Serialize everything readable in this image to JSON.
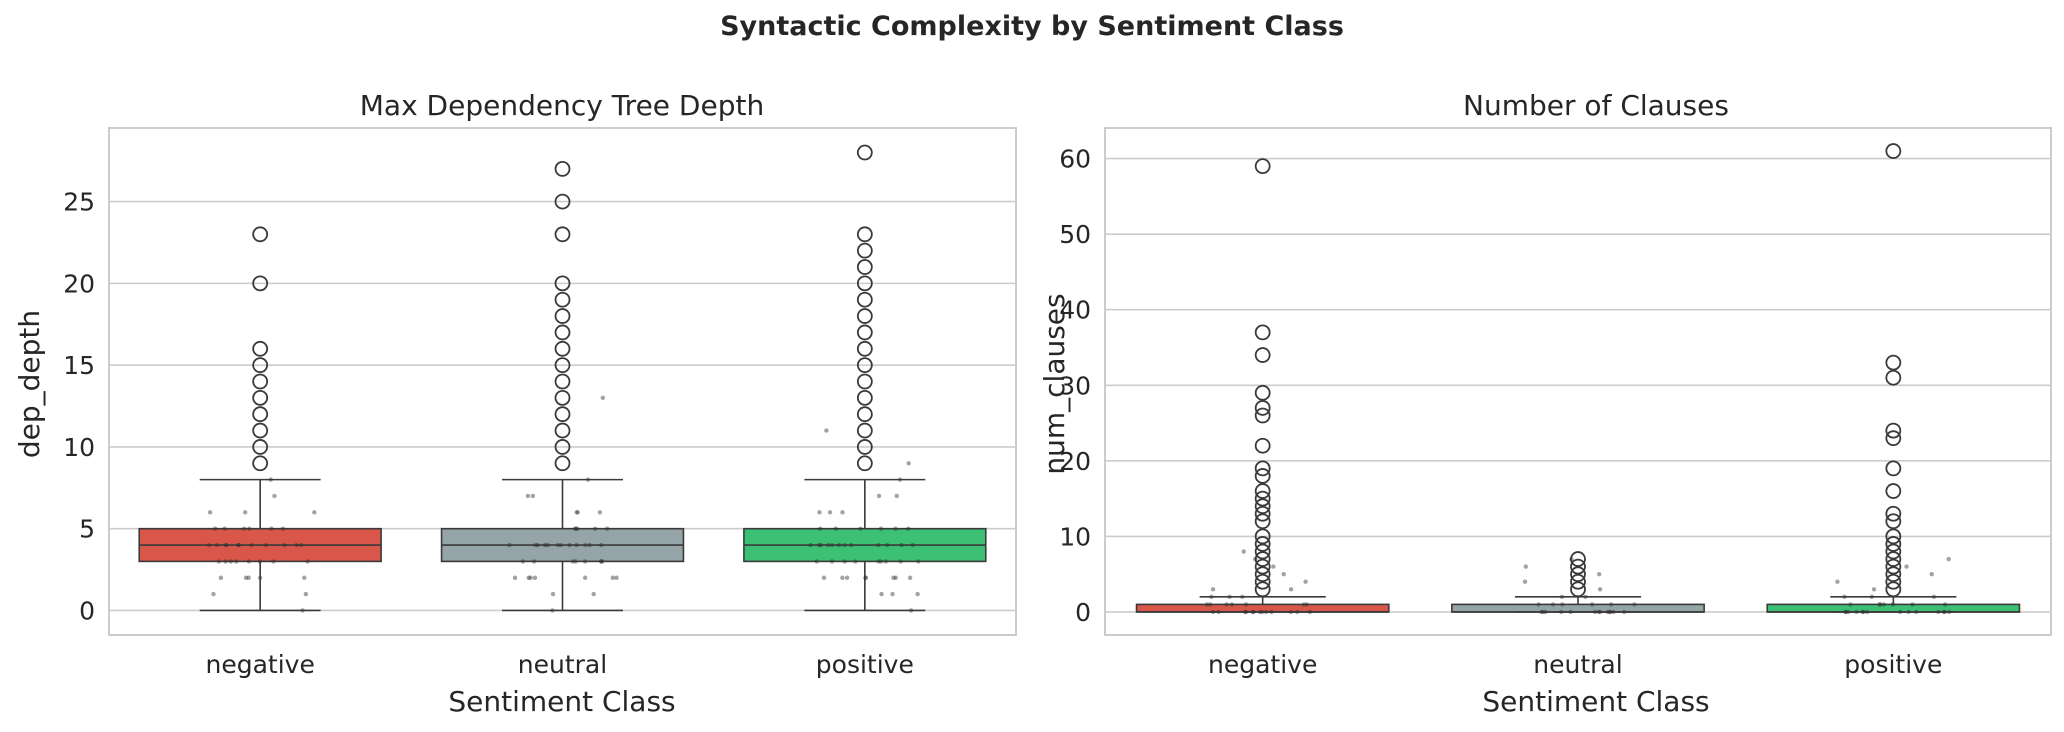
{
  "figure": {
    "suptitle": "Syntactic Complexity by Sentiment Class"
  },
  "colors": {
    "negative": "#d9574a",
    "neutral": "#95a4a6",
    "positive": "#3cc174",
    "box_edge": "#3a3a3a",
    "grid": "#cccccc",
    "frame": "#cccccc"
  },
  "chart_data": [
    {
      "type": "box",
      "title": "Max Dependency Tree Depth",
      "xlabel": "Sentiment Class",
      "ylabel": "dep_depth",
      "categories": [
        "negative",
        "neutral",
        "positive"
      ],
      "ylim": [
        -1.5,
        29.5
      ],
      "yticks": [
        0,
        5,
        10,
        15,
        20,
        25
      ],
      "grid": true,
      "boxes": [
        {
          "category": "negative",
          "whisker_low": 0,
          "q1": 3,
          "median": 4,
          "q3": 5,
          "whisker_high": 8,
          "outliers": [
            9,
            10,
            11,
            12,
            13,
            14,
            15,
            16,
            20,
            23
          ]
        },
        {
          "category": "neutral",
          "whisker_low": 0,
          "q1": 3,
          "median": 4,
          "q3": 5,
          "whisker_high": 8,
          "outliers": [
            9,
            10,
            11,
            12,
            13,
            14,
            15,
            16,
            17,
            18,
            19,
            20,
            23,
            25,
            27
          ]
        },
        {
          "category": "positive",
          "whisker_low": 0,
          "q1": 3,
          "median": 4,
          "q3": 5,
          "whisker_high": 8,
          "outliers": [
            9,
            10,
            11,
            12,
            13,
            14,
            15,
            16,
            17,
            18,
            19,
            20,
            21,
            22,
            23,
            28
          ]
        }
      ],
      "strip_points": [
        {
          "category": "negative",
          "values": [
            0,
            1,
            1,
            2,
            2,
            2,
            2,
            2,
            3,
            3,
            3,
            3,
            3,
            3,
            3,
            3,
            4,
            4,
            4,
            4,
            4,
            4,
            4,
            4,
            4,
            4,
            4,
            5,
            5,
            5,
            5,
            5,
            5,
            6,
            6,
            6,
            7,
            8
          ]
        },
        {
          "category": "neutral",
          "values": [
            0,
            1,
            1,
            2,
            2,
            2,
            2,
            2,
            2,
            2,
            3,
            3,
            3,
            3,
            3,
            3,
            3,
            3,
            4,
            4,
            4,
            4,
            4,
            4,
            4,
            4,
            4,
            4,
            4,
            4,
            5,
            5,
            5,
            5,
            5,
            6,
            6,
            6,
            7,
            7,
            8,
            13
          ]
        },
        {
          "category": "positive",
          "values": [
            0,
            1,
            1,
            1,
            2,
            2,
            2,
            2,
            2,
            2,
            2,
            2,
            3,
            3,
            3,
            3,
            3,
            3,
            3,
            3,
            3,
            4,
            4,
            4,
            4,
            4,
            4,
            4,
            4,
            4,
            4,
            4,
            4,
            5,
            5,
            5,
            5,
            5,
            5,
            6,
            6,
            6,
            7,
            7,
            8,
            9,
            11
          ]
        }
      ]
    },
    {
      "type": "box",
      "title": "Number of Clauses",
      "xlabel": "Sentiment Class",
      "ylabel": "num_clauses",
      "categories": [
        "negative",
        "neutral",
        "positive"
      ],
      "ylim": [
        -3.05,
        64.05
      ],
      "yticks": [
        0,
        10,
        20,
        30,
        40,
        50,
        60
      ],
      "grid": true,
      "boxes": [
        {
          "category": "negative",
          "whisker_low": 0,
          "q1": 0,
          "median": 0,
          "q3": 1,
          "whisker_high": 2,
          "outliers": [
            3,
            4,
            5,
            6,
            7,
            8,
            9,
            10,
            12,
            13,
            14,
            15,
            16,
            18,
            19,
            22,
            26,
            27,
            29,
            34,
            37,
            59
          ]
        },
        {
          "category": "neutral",
          "whisker_low": 0,
          "q1": 0,
          "median": 0,
          "q3": 1,
          "whisker_high": 2,
          "outliers": [
            3,
            4,
            5,
            6,
            7
          ]
        },
        {
          "category": "positive",
          "whisker_low": 0,
          "q1": 0,
          "median": 0,
          "q3": 1,
          "whisker_high": 2,
          "outliers": [
            3,
            4,
            5,
            6,
            7,
            8,
            9,
            10,
            12,
            13,
            16,
            19,
            23,
            24,
            31,
            33,
            61
          ]
        }
      ],
      "strip_points": [
        {
          "category": "negative",
          "values": [
            0,
            0,
            0,
            0,
            0,
            0,
            0,
            0,
            0,
            0,
            0,
            0,
            0,
            1,
            1,
            1,
            1,
            1,
            1,
            1,
            2,
            2,
            2,
            3,
            3,
            4,
            5,
            6,
            7,
            8
          ]
        },
        {
          "category": "neutral",
          "values": [
            0,
            0,
            0,
            0,
            0,
            0,
            0,
            0,
            0,
            0,
            0,
            0,
            0,
            1,
            1,
            1,
            1,
            1,
            1,
            2,
            2,
            3,
            4,
            5,
            6,
            7
          ]
        },
        {
          "category": "positive",
          "values": [
            0,
            0,
            0,
            0,
            0,
            0,
            0,
            0,
            0,
            0,
            0,
            0,
            0,
            0,
            1,
            1,
            1,
            1,
            1,
            1,
            1,
            2,
            2,
            2,
            3,
            4,
            5,
            6,
            7
          ]
        }
      ]
    }
  ]
}
